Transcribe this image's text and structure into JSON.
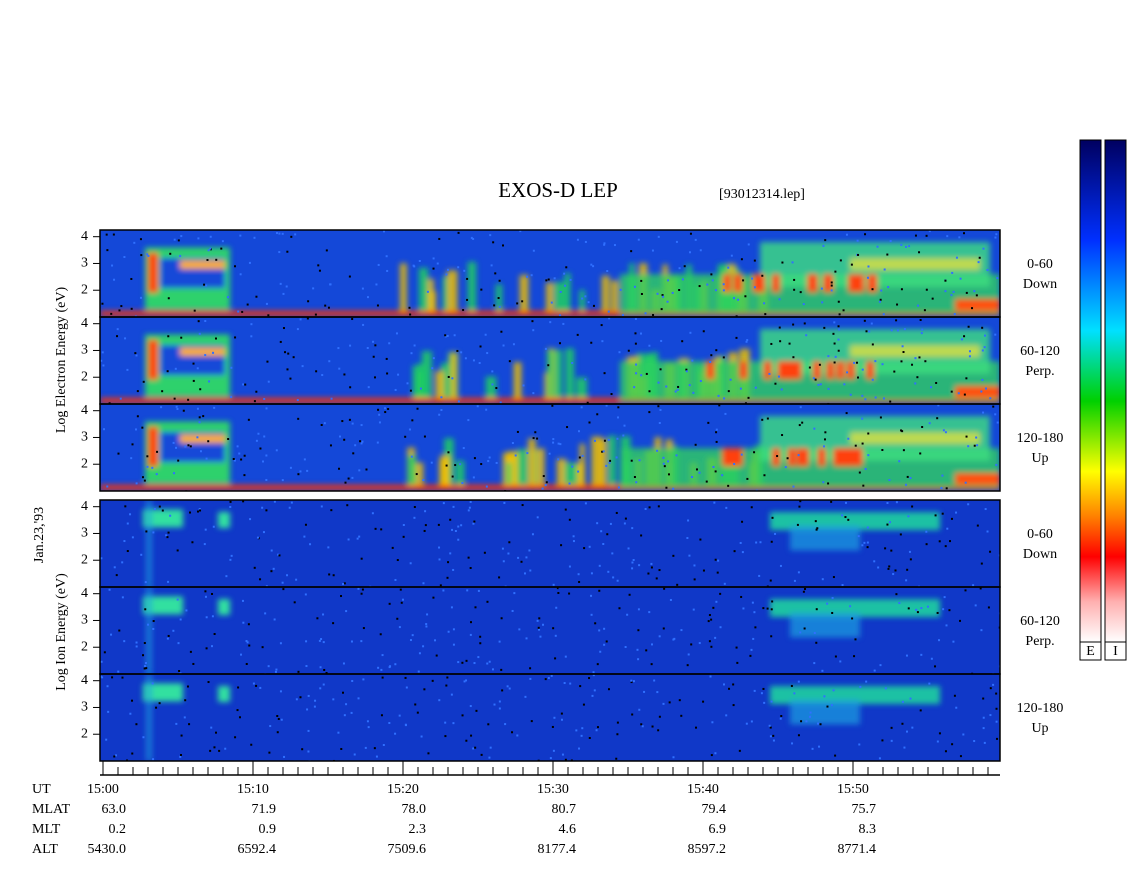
{
  "title": "EXOS-D LEP",
  "file": "[93012314.lep]",
  "date_label": "Jan.23,'93",
  "electron_axis_label": "Log Electron Energy (eV)",
  "ion_axis_label": "Log Ion Energy (eV)",
  "panel_yticks": [
    "4",
    "3",
    "2"
  ],
  "panels": [
    {
      "angle": "0-60",
      "direction": "Down"
    },
    {
      "angle": "60-120",
      "direction": "Perp."
    },
    {
      "angle": "120-180",
      "direction": "Up"
    },
    {
      "angle": "0-60",
      "direction": "Down"
    },
    {
      "angle": "60-120",
      "direction": "Perp."
    },
    {
      "angle": "120-180",
      "direction": "Up"
    }
  ],
  "ut_label": "UT",
  "ut_ticks": [
    "15:00",
    "15:10",
    "15:20",
    "15:30",
    "15:40",
    "15:50"
  ],
  "ephemeris": [
    {
      "label": "MLAT",
      "values": [
        "63.0",
        "71.9",
        "78.0",
        "80.7",
        "79.4",
        "75.7"
      ]
    },
    {
      "label": "MLT",
      "values": [
        "0.2",
        "0.9",
        "2.3",
        "4.6",
        "6.9",
        "8.3"
      ]
    },
    {
      "label": "ALT",
      "values": [
        "5430.0",
        "6592.4",
        "7509.6",
        "8177.4",
        "8597.2",
        "8771.4"
      ]
    }
  ],
  "colorbar_labels": [
    "E",
    "I"
  ]
}
